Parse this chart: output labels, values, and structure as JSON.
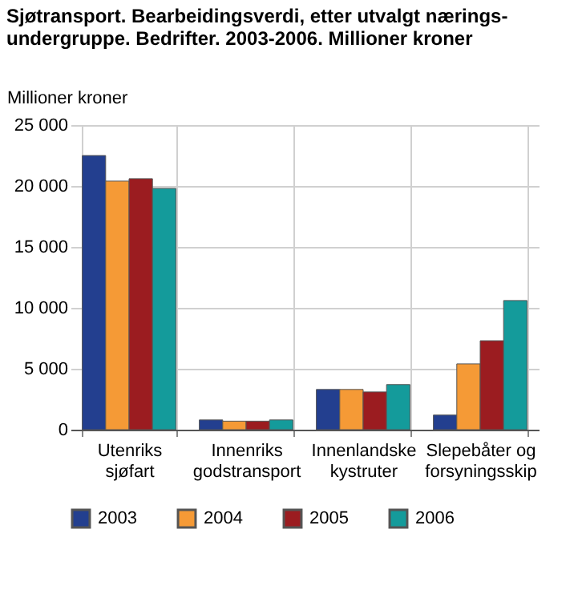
{
  "chart_data": {
    "type": "bar",
    "title": "Sjøtransport. Bearbeidingsverdi, etter utvalgt nærings-undergruppe. Bedrifter. 2003-2006. Millioner kroner",
    "ylabel": "Millioner kroner",
    "categories": [
      "Utenriks sjøfart",
      "Innenriks godstransport",
      "Innenlandske kystruter",
      "Slepebåter og forsyningsskip"
    ],
    "series": [
      {
        "name": "2003",
        "color": "#233f8f",
        "values": [
          22500,
          800,
          3300,
          1200
        ]
      },
      {
        "name": "2004",
        "color": "#f59a36",
        "values": [
          20400,
          700,
          3300,
          5400
        ]
      },
      {
        "name": "2005",
        "color": "#9b1c20",
        "values": [
          20600,
          700,
          3100,
          7300
        ]
      },
      {
        "name": "2006",
        "color": "#149b9b",
        "values": [
          19800,
          800,
          3700,
          10600
        ]
      }
    ],
    "ylim": [
      0,
      25000
    ],
    "yticks": [
      0,
      5000,
      10000,
      15000,
      20000,
      25000
    ],
    "grid": true,
    "legend": "bottom"
  }
}
